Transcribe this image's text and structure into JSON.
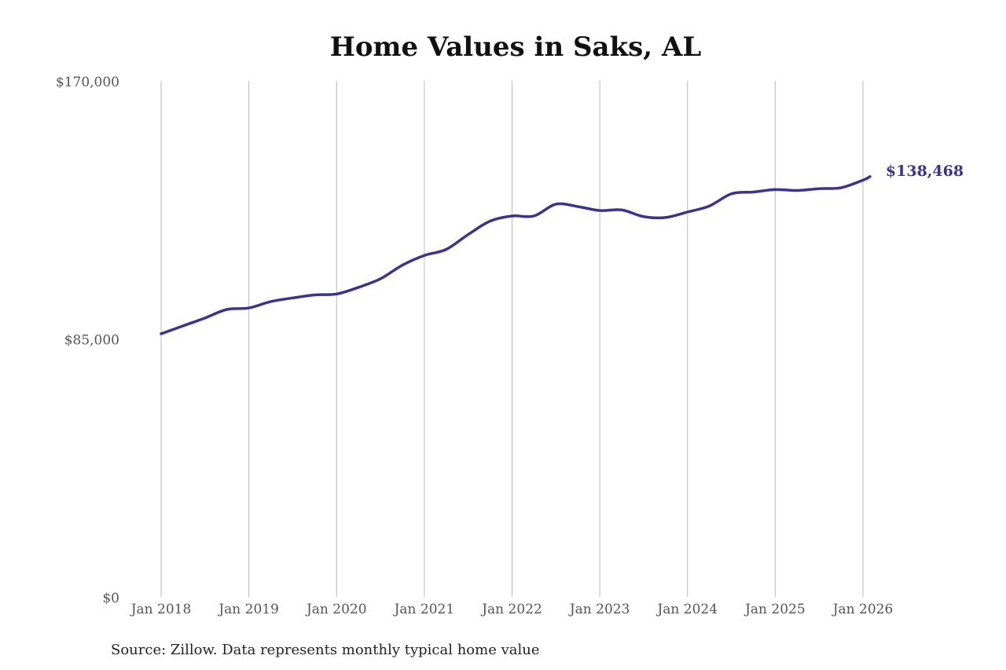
{
  "chart_data": {
    "type": "line",
    "title": "Home Values in Saks, AL",
    "source": "Source: Zillow. Data represents monthly typical home value",
    "xlabel": "",
    "ylabel": "",
    "ylim": [
      0,
      170000
    ],
    "xlim": [
      2018,
      2026.1
    ],
    "y_ticks": [
      0,
      85000,
      170000
    ],
    "y_tick_labels": [
      "$0",
      "$85,000",
      "$170,000"
    ],
    "x_ticks": [
      2018,
      2019,
      2020,
      2021,
      2022,
      2023,
      2024,
      2025,
      2026
    ],
    "x_tick_labels": [
      "Jan 2018",
      "Jan 2019",
      "Jan 2020",
      "Jan 2021",
      "Jan 2022",
      "Jan 2023",
      "Jan 2024",
      "Jan 2025",
      "Jan 2026"
    ],
    "grid": "vertical",
    "line_color": "#3a3391",
    "end_label": "$138,468",
    "series": [
      {
        "name": "Typical home value",
        "x": [
          2018.0,
          2018.25,
          2018.5,
          2018.75,
          2019.0,
          2019.25,
          2019.5,
          2019.75,
          2020.0,
          2020.25,
          2020.5,
          2020.75,
          2021.0,
          2021.25,
          2021.5,
          2021.75,
          2022.0,
          2022.25,
          2022.5,
          2022.75,
          2023.0,
          2023.25,
          2023.5,
          2023.75,
          2024.0,
          2024.25,
          2024.5,
          2024.75,
          2025.0,
          2025.25,
          2025.5,
          2025.75,
          2026.0,
          2026.08
        ],
        "values": [
          86700,
          89300,
          91900,
          94700,
          95200,
          97300,
          98500,
          99500,
          99800,
          102000,
          104800,
          109300,
          112500,
          114500,
          119400,
          123800,
          125500,
          125500,
          129400,
          128600,
          127300,
          127500,
          125300,
          125000,
          126800,
          128800,
          132800,
          133400,
          134200,
          133900,
          134500,
          134800,
          137300,
          138468
        ]
      }
    ]
  }
}
